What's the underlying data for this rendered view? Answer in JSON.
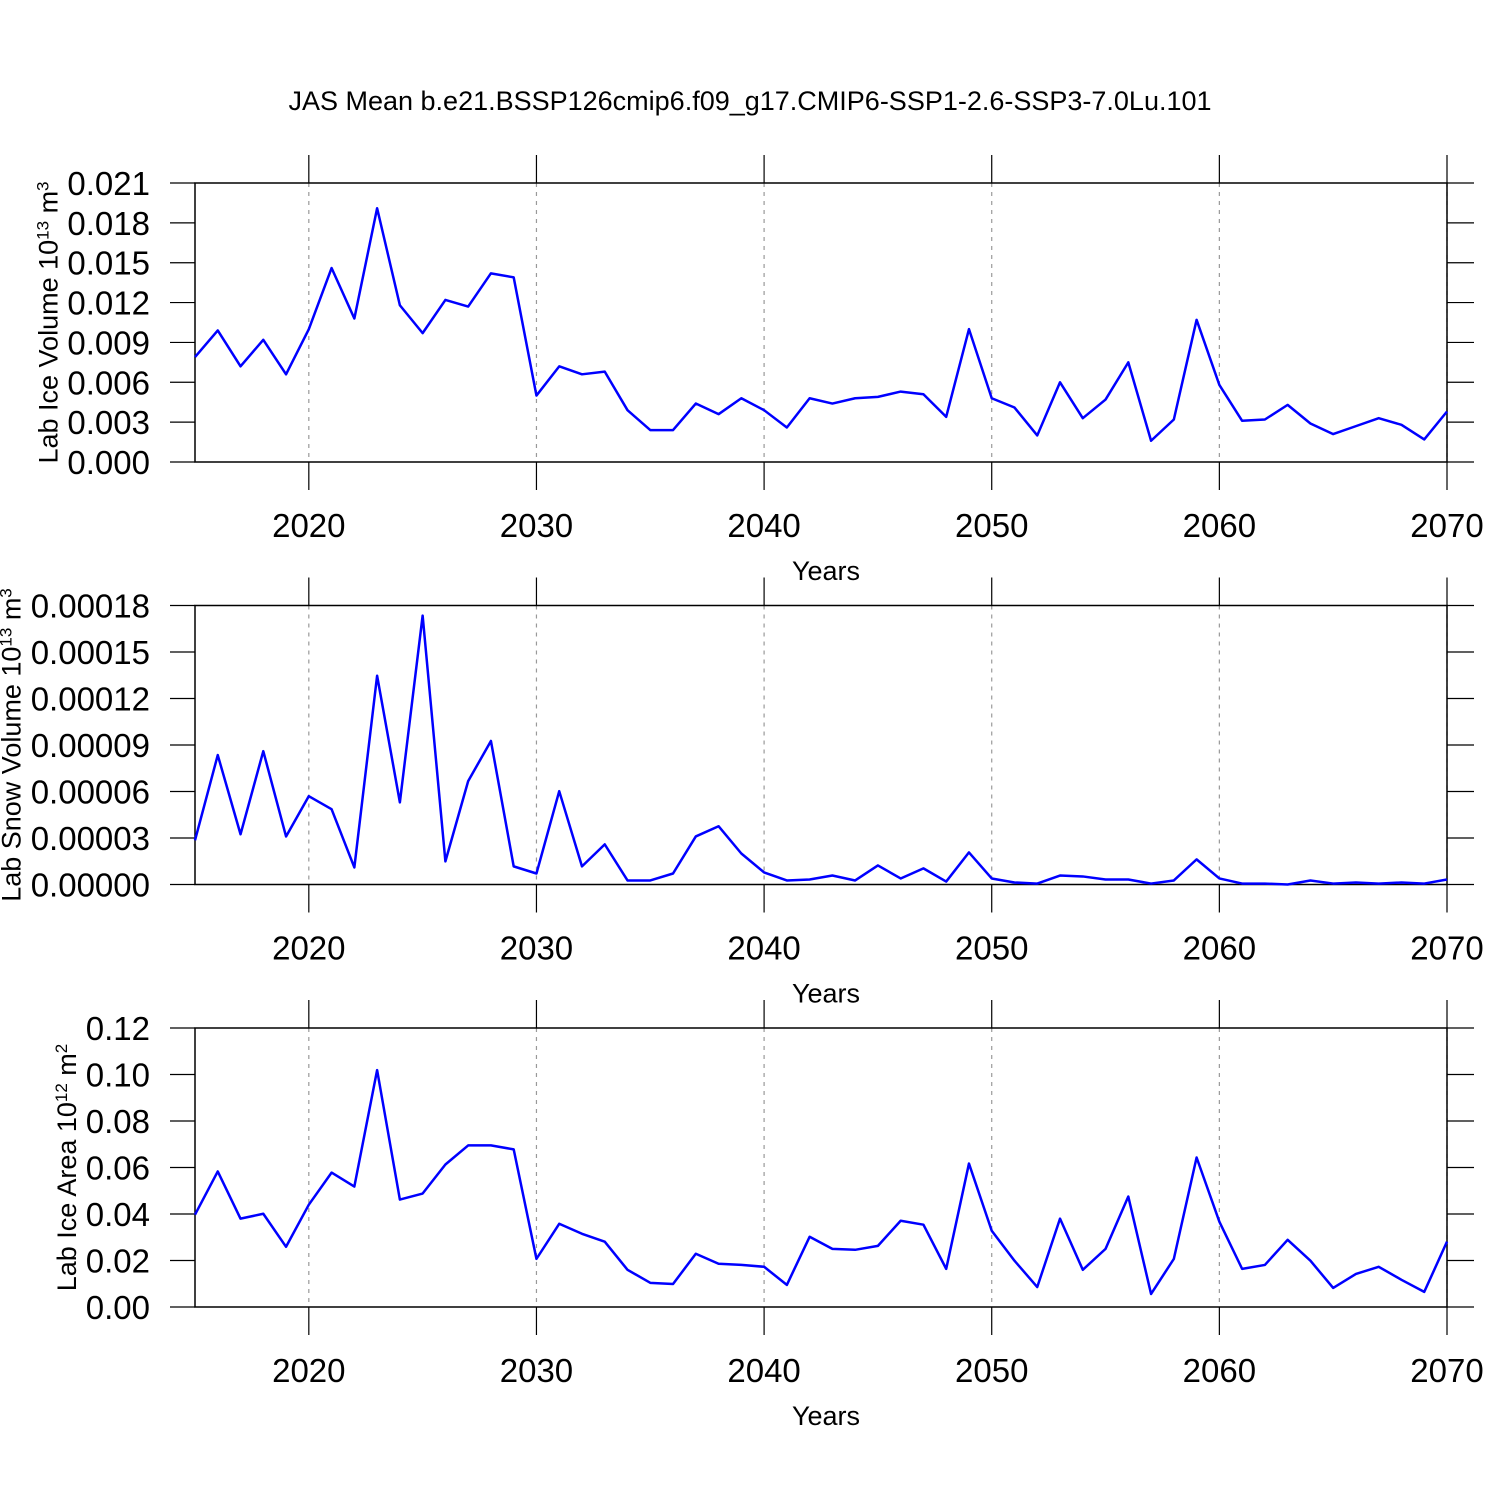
{
  "chart_data": [
    {
      "type": "line",
      "title": "JAS Mean b.e21.BSSP126cmip6.f09_g17.CMIP6-SSP1-2.6-SSP3-7.0Lu.101",
      "xlabel": "Years",
      "ylabel": [
        "Lab Ice Volume 10",
        "13",
        " m",
        "3"
      ],
      "x": [
        2015,
        2016,
        2017,
        2018,
        2019,
        2020,
        2021,
        2022,
        2023,
        2024,
        2025,
        2026,
        2027,
        2028,
        2029,
        2030,
        2031,
        2032,
        2033,
        2034,
        2035,
        2036,
        2037,
        2038,
        2039,
        2040,
        2041,
        2042,
        2043,
        2044,
        2045,
        2046,
        2047,
        2048,
        2049,
        2050,
        2051,
        2052,
        2053,
        2054,
        2055,
        2056,
        2057,
        2058,
        2059,
        2060,
        2061,
        2062,
        2063,
        2064,
        2065,
        2066,
        2067,
        2068,
        2069,
        2070
      ],
      "values": [
        0.0079,
        0.0099,
        0.0072,
        0.0092,
        0.0066,
        0.01,
        0.0146,
        0.0108,
        0.0191,
        0.0118,
        0.0097,
        0.0122,
        0.0117,
        0.0142,
        0.0139,
        0.005,
        0.0072,
        0.0066,
        0.0068,
        0.0039,
        0.0024,
        0.0024,
        0.0044,
        0.0036,
        0.0048,
        0.0039,
        0.0026,
        0.0048,
        0.0044,
        0.0048,
        0.0049,
        0.0053,
        0.0051,
        0.0034,
        0.01,
        0.0048,
        0.0041,
        0.002,
        0.006,
        0.0033,
        0.0047,
        0.0075,
        0.0016,
        0.0032,
        0.0107,
        0.0058,
        0.0031,
        0.0032,
        0.0043,
        0.0029,
        0.0021,
        0.0027,
        0.0033,
        0.0028,
        0.0017,
        0.0038
      ],
      "color": "#0000ff",
      "xlim": [
        2015,
        2070
      ],
      "xticks": [
        2020,
        2030,
        2040,
        2050,
        2060,
        2070
      ],
      "xgrid": true,
      "ylim": [
        0,
        0.021
      ],
      "yticks": [
        {
          "value": 0,
          "label": "0.000"
        },
        0.003,
        0.006,
        0.009,
        0.012,
        0.015,
        0.018,
        0.021
      ]
    },
    {
      "type": "line",
      "xlabel": "Years",
      "ylabel": [
        "Lab Snow Volume 10",
        "13",
        " m",
        "3"
      ],
      "x": [
        2015,
        2016,
        2017,
        2018,
        2019,
        2020,
        2021,
        2022,
        2023,
        2024,
        2025,
        2026,
        2027,
        2028,
        2029,
        2030,
        2031,
        2032,
        2033,
        2034,
        2035,
        2036,
        2037,
        2038,
        2039,
        2040,
        2041,
        2042,
        2043,
        2044,
        2045,
        2046,
        2047,
        2048,
        2049,
        2050,
        2051,
        2052,
        2053,
        2054,
        2055,
        2056,
        2057,
        2058,
        2059,
        2060,
        2061,
        2062,
        2063,
        2064,
        2065,
        2066,
        2067,
        2068,
        2069,
        2070
      ],
      "values": [
        2.85e-05,
        8.35e-05,
        3.24e-05,
        8.6e-05,
        3.1e-05,
        5.7e-05,
        4.86e-05,
        1.1e-05,
        0.0001347,
        5.3e-05,
        0.0001735,
        1.49e-05,
        6.67e-05,
        9.26e-05,
        1.17e-05,
        7.1e-06,
        6.02e-05,
        1.17e-05,
        2.59e-05,
        2.6e-06,
        2.6e-06,
        7.1e-06,
        3.1e-05,
        3.76e-05,
        2e-05,
        7.8e-06,
        2.6e-06,
        3.2e-06,
        5.8e-06,
        2.6e-06,
        1.23e-05,
        3.9e-06,
        1.04e-05,
        1.9e-06,
        2.07e-05,
        3.9e-06,
        1.3e-06,
        6e-07,
        5.8e-06,
        5.2e-06,
        3.2e-06,
        3.2e-06,
        6e-07,
        2.6e-06,
        1.62e-05,
        3.9e-06,
        6e-07,
        6e-07,
        0.0,
        2.6e-06,
        6e-07,
        1.3e-06,
        6e-07,
        1.3e-06,
        6e-07,
        3.2e-06
      ],
      "color": "#0000ff",
      "xlim": [
        2015,
        2070
      ],
      "xticks": [
        2020,
        2030,
        2040,
        2050,
        2060,
        2070
      ],
      "xgrid": true,
      "ylim": [
        0,
        0.00018
      ],
      "yticks": [
        {
          "value": 0,
          "label": "0.00000"
        },
        3e-05,
        6e-05,
        9e-05,
        0.00012,
        0.00015,
        0.00018
      ]
    },
    {
      "type": "line",
      "xlabel": "Years",
      "ylabel": [
        "Lab Ice Area 10",
        "12",
        " m",
        "2"
      ],
      "x": [
        2015,
        2016,
        2017,
        2018,
        2019,
        2020,
        2021,
        2022,
        2023,
        2024,
        2025,
        2026,
        2027,
        2028,
        2029,
        2030,
        2031,
        2032,
        2033,
        2034,
        2035,
        2036,
        2037,
        2038,
        2039,
        2040,
        2041,
        2042,
        2043,
        2044,
        2045,
        2046,
        2047,
        2048,
        2049,
        2050,
        2051,
        2052,
        2053,
        2054,
        2055,
        2056,
        2057,
        2058,
        2059,
        2060,
        2061,
        2062,
        2063,
        2064,
        2065,
        2066,
        2067,
        2068,
        2069,
        2070
      ],
      "values": [
        0.0397,
        0.0583,
        0.038,
        0.0401,
        0.0259,
        0.044,
        0.0578,
        0.0518,
        0.1019,
        0.0462,
        0.0488,
        0.0613,
        0.0695,
        0.0695,
        0.0678,
        0.0207,
        0.0358,
        0.0315,
        0.0281,
        0.016,
        0.0104,
        0.0099,
        0.0229,
        0.0186,
        0.0181,
        0.0173,
        0.0095,
        0.0302,
        0.025,
        0.0246,
        0.0263,
        0.0371,
        0.0354,
        0.0164,
        0.0617,
        0.0328,
        0.0199,
        0.0086,
        0.038,
        0.016,
        0.025,
        0.0475,
        0.0056,
        0.0207,
        0.0643,
        0.0367,
        0.0164,
        0.0181,
        0.0289,
        0.0199,
        0.0082,
        0.0142,
        0.0173,
        0.0117,
        0.0065,
        0.0281
      ],
      "color": "#0000ff",
      "xlim": [
        2015,
        2070
      ],
      "xticks": [
        2020,
        2030,
        2040,
        2050,
        2060,
        2070
      ],
      "xgrid": true,
      "ylim": [
        0,
        0.12
      ],
      "yticks": [
        {
          "value": 0,
          "label": "0.00"
        },
        0.02,
        0.04,
        0.06,
        0.08,
        {
          "value": 0.1,
          "label": "0.10"
        },
        0.12
      ]
    }
  ]
}
